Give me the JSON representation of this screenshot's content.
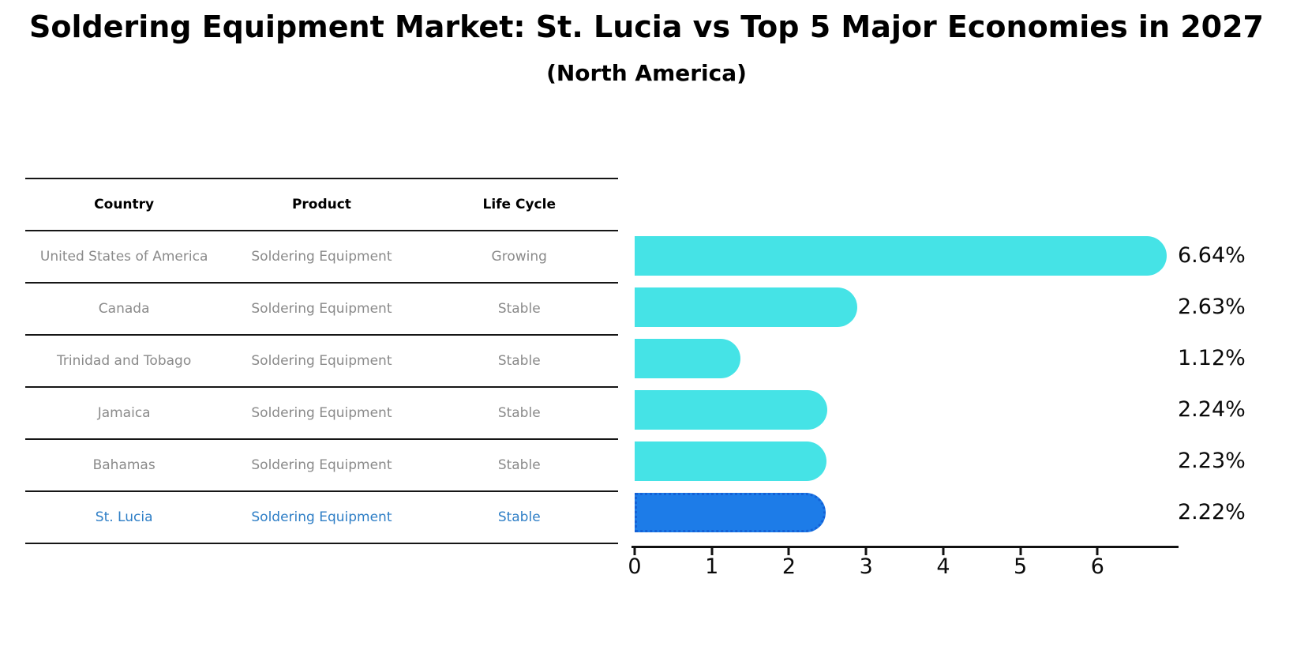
{
  "title": "Soldering Equipment Market: St. Lucia vs Top 5 Major Economies in 2027",
  "subtitle": "(North America)",
  "table": {
    "headers": {
      "country": "Country",
      "product": "Product",
      "life_cycle": "Life Cycle"
    },
    "rows": [
      {
        "country": "United States of America",
        "product": "Soldering Equipment",
        "life_cycle": "Growing",
        "highlight": false
      },
      {
        "country": "Canada",
        "product": "Soldering Equipment",
        "life_cycle": "Stable",
        "highlight": false
      },
      {
        "country": "Trinidad and Tobago",
        "product": "Soldering Equipment",
        "life_cycle": "Stable",
        "highlight": false
      },
      {
        "country": "Jamaica",
        "product": "Soldering Equipment",
        "life_cycle": "Stable",
        "highlight": false
      },
      {
        "country": "Bahamas",
        "product": "Soldering Equipment",
        "life_cycle": "Stable",
        "highlight": false
      },
      {
        "country": "St. Lucia",
        "product": "Soldering Equipment",
        "life_cycle": "Stable",
        "highlight": true
      }
    ]
  },
  "chart_data": {
    "type": "bar",
    "orientation": "horizontal",
    "title": "Soldering Equipment Market: St. Lucia vs Top 5 Major Economies in 2027",
    "subtitle": "(North America)",
    "categories": [
      "United States of America",
      "Canada",
      "Trinidad and Tobago",
      "Jamaica",
      "Bahamas",
      "St. Lucia"
    ],
    "values": [
      6.64,
      2.63,
      1.12,
      2.24,
      2.23,
      2.22
    ],
    "labels": [
      "6.64%",
      "2.63%",
      "1.12%",
      "2.24%",
      "2.23%",
      "2.22%"
    ],
    "xlim": [
      0,
      7.05
    ],
    "xticks": [
      0,
      1,
      2,
      3,
      4,
      5,
      6
    ],
    "grid": false,
    "legend": false,
    "bar_color": "#45e3e6",
    "highlight_color": "#1d7ce8",
    "highlight_border_color": "#1461d6",
    "highlight_index": 5
  }
}
